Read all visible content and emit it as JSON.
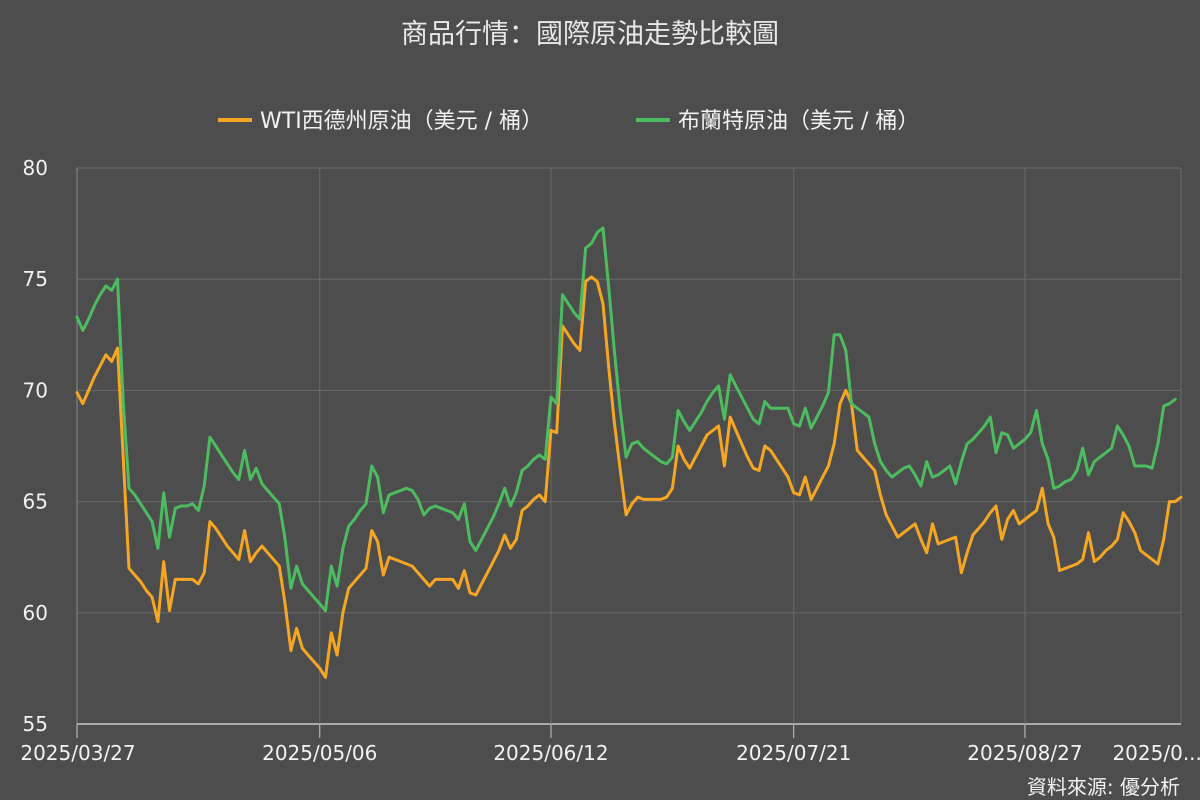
{
  "chart_data": {
    "type": "line",
    "title": "商品行情：國際原油走勢比較圖",
    "source": "資料來源: 優分析",
    "legend_position": "top",
    "grid": true,
    "ylim": [
      55,
      80
    ],
    "y_ticks": [
      55,
      60,
      65,
      70,
      75,
      80
    ],
    "x_ticks": [
      "2025/03/27",
      "2025/05/06",
      "2025/06/12",
      "2025/07/21",
      "2025/08/27",
      "2025/0..."
    ],
    "x_tick_index": [
      0,
      42,
      82,
      124,
      164,
      196
    ],
    "series": [
      {
        "name": "WTI西德州原油（美元 / 桶）",
        "color": "#f5a623",
        "values": [
          69.9,
          69.4,
          70.0,
          70.6,
          71.1,
          71.6,
          71.3,
          71.9,
          67.0,
          62.0,
          61.7,
          61.4,
          61.0,
          60.7,
          59.6,
          62.3,
          60.1,
          61.5,
          61.5,
          61.5,
          61.5,
          61.3,
          61.8,
          64.1,
          63.8,
          63.4,
          63.0,
          62.7,
          62.4,
          63.7,
          62.3,
          62.7,
          63.0,
          62.7,
          62.4,
          62.1,
          60.4,
          58.3,
          59.3,
          58.4,
          58.1,
          57.8,
          57.5,
          57.1,
          59.1,
          58.1,
          60.0,
          61.1,
          61.4,
          61.7,
          62.0,
          63.7,
          63.2,
          61.7,
          62.5,
          62.4,
          62.3,
          62.2,
          62.1,
          61.8,
          61.5,
          61.2,
          61.5,
          61.5,
          61.5,
          61.5,
          61.1,
          61.9,
          60.9,
          60.8,
          61.3,
          61.8,
          62.3,
          62.8,
          63.5,
          62.9,
          63.3,
          64.6,
          64.8,
          65.1,
          65.3,
          65.0,
          68.2,
          68.1,
          72.9,
          72.5,
          72.1,
          71.8,
          74.9,
          75.1,
          74.9,
          73.9,
          71.0,
          68.5,
          66.4,
          64.4,
          64.9,
          65.2,
          65.1,
          65.1,
          65.1,
          65.1,
          65.2,
          65.6,
          67.5,
          66.9,
          66.5,
          67.0,
          67.5,
          68.0,
          68.2,
          68.4,
          66.6,
          68.8,
          68.2,
          67.6,
          67.0,
          66.5,
          66.4,
          67.5,
          67.3,
          66.9,
          66.5,
          66.1,
          65.4,
          65.3,
          66.1,
          65.1,
          65.6,
          66.1,
          66.6,
          67.6,
          69.4,
          70.0,
          69.4,
          67.3,
          67.0,
          66.7,
          66.4,
          65.3,
          64.4,
          63.9,
          63.4,
          63.6,
          63.8,
          64.0,
          63.3,
          62.7,
          64.0,
          63.1,
          63.2,
          63.3,
          63.4,
          61.8,
          62.7,
          63.5,
          63.8,
          64.1,
          64.5,
          64.8,
          63.3,
          64.2,
          64.6,
          64.0,
          64.2,
          64.4,
          64.6,
          65.6,
          64.0,
          63.4,
          61.9,
          62.0,
          62.1,
          62.2,
          62.4,
          63.6,
          62.3,
          62.5,
          62.8,
          63.0,
          63.3,
          64.5,
          64.1,
          63.6,
          62.8,
          62.6,
          62.4,
          62.2,
          63.3,
          65.0,
          65.0,
          65.2
        ]
      },
      {
        "name": "布蘭特原油（美元 / 桶）",
        "color": "#4dbb5f",
        "values": [
          73.3,
          72.7,
          73.2,
          73.8,
          74.3,
          74.7,
          74.5,
          75.0,
          69.5,
          65.6,
          65.3,
          64.9,
          64.5,
          64.1,
          62.9,
          65.4,
          63.4,
          64.7,
          64.8,
          64.8,
          64.9,
          64.6,
          65.7,
          67.9,
          67.5,
          67.1,
          66.7,
          66.3,
          66.0,
          67.3,
          66.0,
          66.5,
          65.8,
          65.5,
          65.2,
          64.9,
          63.3,
          61.1,
          62.1,
          61.3,
          61.0,
          60.7,
          60.4,
          60.1,
          62.1,
          61.2,
          62.9,
          63.9,
          64.2,
          64.6,
          64.9,
          66.6,
          66.1,
          64.5,
          65.3,
          65.4,
          65.5,
          65.6,
          65.5,
          65.1,
          64.4,
          64.7,
          64.8,
          64.7,
          64.6,
          64.5,
          64.2,
          64.9,
          63.2,
          62.8,
          63.3,
          63.8,
          64.3,
          64.9,
          65.6,
          64.8,
          65.4,
          66.4,
          66.6,
          66.9,
          67.1,
          66.9,
          69.7,
          69.4,
          74.3,
          73.9,
          73.5,
          73.2,
          76.4,
          76.6,
          77.1,
          77.3,
          74.6,
          71.7,
          69.1,
          67.0,
          67.6,
          67.7,
          67.4,
          67.2,
          67.0,
          66.8,
          66.7,
          67.0,
          69.1,
          68.6,
          68.2,
          68.6,
          69.0,
          69.5,
          69.9,
          70.2,
          68.7,
          70.7,
          70.2,
          69.7,
          69.2,
          68.7,
          68.5,
          69.5,
          69.2,
          69.2,
          69.2,
          69.2,
          68.5,
          68.4,
          69.2,
          68.3,
          68.8,
          69.3,
          69.9,
          72.5,
          72.5,
          71.8,
          69.4,
          69.2,
          69.0,
          68.8,
          67.6,
          66.8,
          66.4,
          66.1,
          66.3,
          66.5,
          66.6,
          66.2,
          65.7,
          66.8,
          66.1,
          66.2,
          66.4,
          66.6,
          65.8,
          66.8,
          67.6,
          67.8,
          68.1,
          68.4,
          68.8,
          67.2,
          68.1,
          68.0,
          67.4,
          67.6,
          67.8,
          68.1,
          69.1,
          67.6,
          66.9,
          65.6,
          65.7,
          65.9,
          66.0,
          66.4,
          67.4,
          66.2,
          66.8,
          67.0,
          67.2,
          67.4,
          68.4,
          68.0,
          67.5,
          66.6,
          66.6,
          66.6,
          66.5,
          67.6,
          69.3,
          69.4,
          69.6
        ]
      }
    ]
  }
}
